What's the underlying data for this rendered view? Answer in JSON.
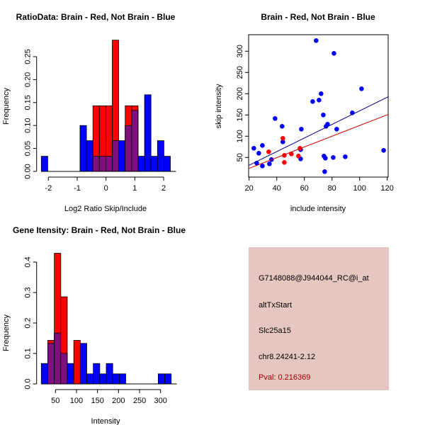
{
  "colors": {
    "red": "#ff0000",
    "blue": "#0000ff",
    "overlap": "#7f0f7f",
    "panel": "#e6c6c0",
    "pval": "#a00000",
    "blue_line": "#00008b",
    "red_line": "#cd0000"
  },
  "chart_data": [
    {
      "type": "bar",
      "title": "RatioData: Brain - Red, Not Brain - Blue",
      "xlabel": "Log2 Ratio Skip/Include",
      "ylabel": "Frequency",
      "xticks": [
        "-2",
        "-1",
        "0",
        "1",
        "2"
      ],
      "xtick_values": [
        -2,
        -1,
        0,
        1,
        2
      ],
      "yticks": [
        "0.00",
        "0.05",
        "0.10",
        "0.15",
        "0.20",
        "0.25"
      ],
      "ytick_values": [
        0,
        0.05,
        0.1,
        0.15,
        0.2,
        0.25
      ],
      "bin_start": -2.246,
      "bin_width": 0.224,
      "series": [
        {
          "name": "Not Brain",
          "color": "blue",
          "values": [
            0.033,
            0,
            0,
            0,
            0,
            0,
            0.1,
            0.067,
            0.033,
            0.033,
            0.033,
            0.067,
            0.067,
            0.1,
            0.133,
            0.033,
            0.167,
            0.033,
            0.067,
            0.033
          ]
        },
        {
          "name": "Brain",
          "color": "red",
          "values": [
            0,
            0,
            0,
            0,
            0,
            0,
            0,
            0,
            0.143,
            0.143,
            0.143,
            0.286,
            0,
            0.143,
            0.143,
            0,
            0,
            0,
            0,
            0
          ]
        }
      ]
    },
    {
      "type": "scatter",
      "title": "Brain - Red, Not Brain - Blue",
      "xlabel": "include intensity",
      "ylabel": "skip intensity",
      "xticks": [
        "20",
        "40",
        "60",
        "80",
        "100",
        "120"
      ],
      "xtick_values": [
        20,
        40,
        60,
        80,
        100,
        120
      ],
      "yticks": [
        "50",
        "100",
        "150",
        "200",
        "250",
        "300"
      ],
      "ytick_values": [
        50,
        100,
        150,
        200,
        250,
        300
      ],
      "series": [
        {
          "name": "Not Brain",
          "color": "blue",
          "points": [
            [
              23.4,
              71.7
            ],
            [
              25.5,
              36.7
            ],
            [
              27,
              60
            ],
            [
              29.6,
              78.3
            ],
            [
              29.6,
              30
            ],
            [
              34.7,
              35
            ],
            [
              36.2,
              45
            ],
            [
              38.8,
              141.7
            ],
            [
              43.9,
              123.3
            ],
            [
              44.4,
              86.7
            ],
            [
              57.8,
              116.7
            ],
            [
              57.3,
              68.3
            ],
            [
              57.3,
              46.7
            ],
            [
              66,
              181.7
            ],
            [
              68.5,
              325
            ],
            [
              70.6,
              185
            ],
            [
              72.1,
              200
            ],
            [
              73.7,
              150
            ],
            [
              74.2,
              53.3
            ],
            [
              75.2,
              48.3
            ],
            [
              74.7,
              16.7
            ],
            [
              75.7,
              123.3
            ],
            [
              76.8,
              128.3
            ],
            [
              81.4,
              295
            ],
            [
              80.9,
              50
            ],
            [
              83.4,
              116.7
            ],
            [
              89.6,
              51.7
            ],
            [
              94.7,
              155
            ],
            [
              101.4,
              211.7
            ],
            [
              117.4,
              66.7
            ]
          ],
          "fit": {
            "intercept_at_20": 31.7,
            "slope": 1.6
          }
        },
        {
          "name": "Brain",
          "color": "red",
          "points": [
            [
              34.2,
              63.3
            ],
            [
              44.4,
              95
            ],
            [
              45.5,
              55
            ],
            [
              45.5,
              38.3
            ],
            [
              50.6,
              58.3
            ],
            [
              55.7,
              53.3
            ],
            [
              56.8,
              71.7
            ]
          ],
          "fit": {
            "intercept_at_20": 24.4,
            "slope": 1.26
          }
        }
      ]
    },
    {
      "type": "bar",
      "title": "Gene Itensity: Brain - Red, Not Brain - Blue",
      "xlabel": "Intensity",
      "ylabel": "Frequency",
      "xticks": [
        "50",
        "100",
        "150",
        "200",
        "250",
        "300"
      ],
      "xtick_values": [
        50,
        100,
        150,
        200,
        250,
        300
      ],
      "yticks": [
        "0.0",
        "0.1",
        "0.2",
        "0.3",
        "0.4"
      ],
      "ytick_values": [
        0,
        0.1,
        0.2,
        0.3,
        0.4
      ],
      "bin_start": 16.3,
      "bin_width": 15.45,
      "series": [
        {
          "name": "Not Brain",
          "color": "blue",
          "values": [
            0.067,
            0.133,
            0.167,
            0.1,
            0.067,
            0,
            0.133,
            0.033,
            0.067,
            0.033,
            0.067,
            0.033,
            0.033,
            0,
            0,
            0,
            0,
            0,
            0.033,
            0.033
          ]
        },
        {
          "name": "Brain",
          "color": "red",
          "values": [
            0,
            0.143,
            0.429,
            0.286,
            0,
            0.143,
            0,
            0,
            0,
            0,
            0,
            0,
            0,
            0,
            0,
            0,
            0,
            0,
            0,
            0
          ]
        }
      ]
    }
  ],
  "info": {
    "probe": "G7148088@J944044_RC@i_at",
    "event": "altTxStart",
    "gene": "Slc25a15",
    "location": "chr8.24241-2.12",
    "pval": "Pval: 0.216369"
  }
}
